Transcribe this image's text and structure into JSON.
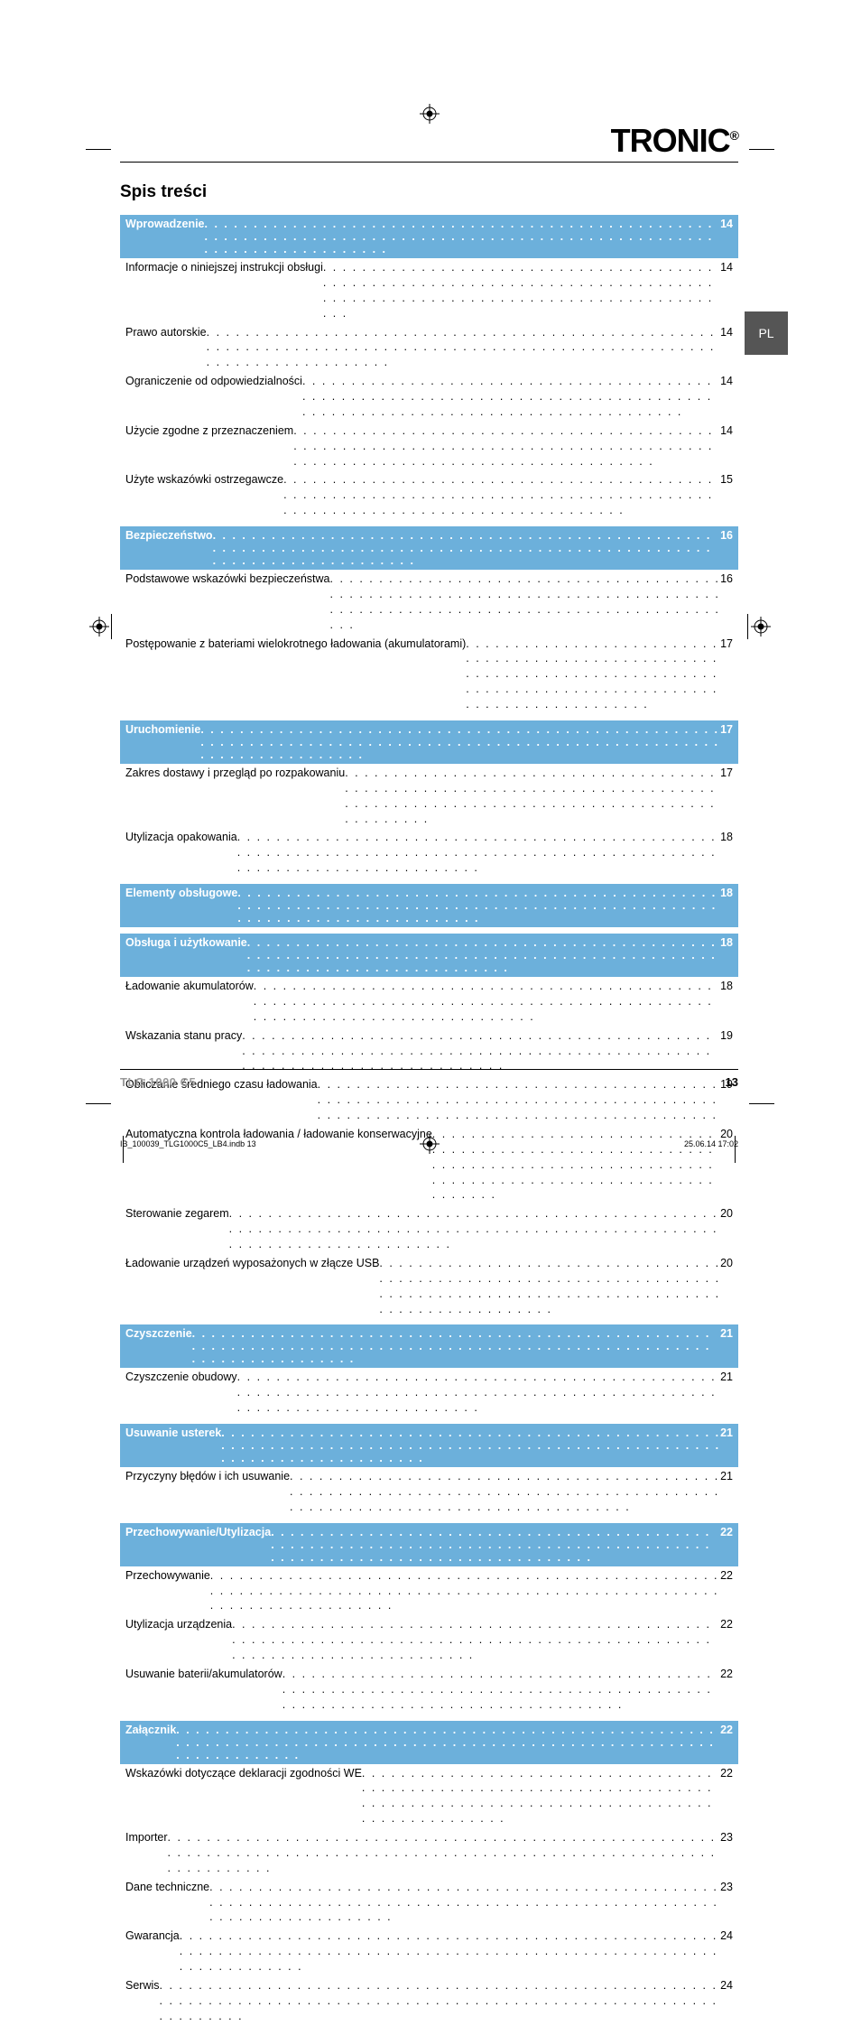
{
  "brand": "TRONIC",
  "brand_dot": "®",
  "lang_tab": "PL",
  "toc_title": "Spis treści",
  "model": "TLG 1000 C5",
  "page_number": "13",
  "job_file": "IB_100039_TLG1000C5_LB4.indb   13",
  "job_time": "25.06.14   17:02",
  "colors": {
    "section_bg": "#6cb0db",
    "tab_bg": "#555555",
    "model_gray": "#9a9a9a"
  },
  "sections": [
    {
      "title": "Wprowadzenie",
      "page": "14",
      "items": [
        {
          "label": "Informacje o niniejszej instrukcji obsługi",
          "page": "14"
        },
        {
          "label": "Prawo autorskie",
          "page": "14"
        },
        {
          "label": "Ograniczenie od odpowiedzialności",
          "page": "14"
        },
        {
          "label": "Użycie zgodne z przeznaczeniem",
          "page": "14"
        },
        {
          "label": "Użyte wskazówki ostrzegawcze",
          "page": "15"
        }
      ]
    },
    {
      "title": "Bezpieczeństwo",
      "page": "16",
      "items": [
        {
          "label": "Podstawowe wskazówki bezpieczeństwa",
          "page": "16"
        },
        {
          "label": "Postępowanie z bateriami wielokrotnego ładowania (akumulatorami)",
          "page": "17"
        }
      ]
    },
    {
      "title": "Uruchomienie",
      "page": "17",
      "items": [
        {
          "label": "Zakres dostawy i przegląd po rozpakowaniu",
          "page": "17"
        },
        {
          "label": "Utylizacja opakowania",
          "page": "18"
        }
      ]
    },
    {
      "title": "Elementy obsługowe",
      "page": "18",
      "items": []
    },
    {
      "title": "Obsługa i użytkowanie",
      "page": "18",
      "items": [
        {
          "label": "Ładowanie akumulatorów",
          "page": "18"
        },
        {
          "label": "Wskazania stanu pracy",
          "page": "19"
        },
        {
          "label": "Obliczanie średniego czasu ładowania",
          "page": "19"
        },
        {
          "label": "Automatyczna kontrola ładowania / ładowanie konserwacyjne",
          "page": "20"
        },
        {
          "label": "Sterowanie zegarem",
          "page": "20"
        },
        {
          "label": "Ładowanie urządzeń wyposażonych w złącze USB",
          "page": "20"
        }
      ]
    },
    {
      "title": "Czyszczenie",
      "page": "21",
      "items": [
        {
          "label": "Czyszczenie obudowy",
          "page": "21"
        }
      ]
    },
    {
      "title": "Usuwanie usterek",
      "page": "21",
      "items": [
        {
          "label": "Przyczyny błędów i ich usuwanie",
          "page": "21"
        }
      ]
    },
    {
      "title": "Przechowywanie/Utylizacja",
      "page": "22",
      "items": [
        {
          "label": "Przechowywanie",
          "page": "22"
        },
        {
          "label": "Utylizacja urządzenia",
          "page": "22"
        },
        {
          "label": "Usuwanie baterii/akumulatorów",
          "page": "22"
        }
      ]
    },
    {
      "title": "Załącznik",
      "page": "22",
      "items": [
        {
          "label": "Wskazówki dotyczące deklaracji zgodności WE",
          "page": "22"
        },
        {
          "label": "Importer",
          "page": "23"
        },
        {
          "label": "Dane techniczne",
          "page": "23"
        },
        {
          "label": "Gwarancja",
          "page": "24"
        },
        {
          "label": "Serwis",
          "page": "24"
        }
      ]
    }
  ]
}
